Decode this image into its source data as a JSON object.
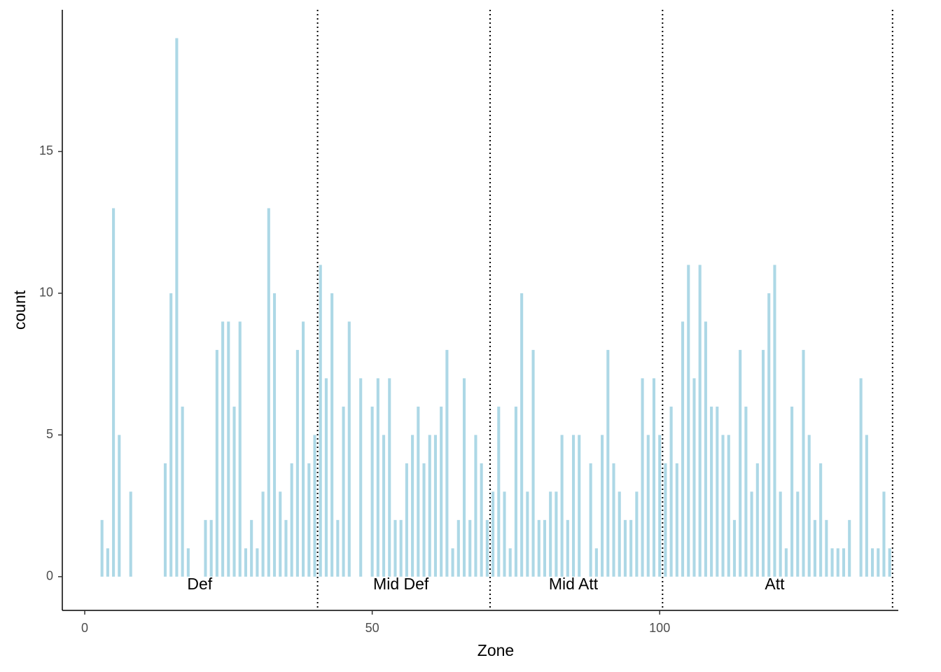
{
  "chart_data": {
    "type": "bar",
    "x_label": "Zone",
    "y_label": "count",
    "x": [
      3,
      4,
      5,
      6,
      8,
      14,
      15,
      16,
      17,
      18,
      21,
      22,
      23,
      24,
      25,
      26,
      27,
      28,
      29,
      30,
      31,
      32,
      33,
      34,
      35,
      36,
      37,
      38,
      39,
      40,
      41,
      42,
      43,
      44,
      45,
      46,
      48,
      50,
      51,
      52,
      53,
      54,
      55,
      56,
      57,
      58,
      59,
      60,
      61,
      62,
      63,
      64,
      65,
      66,
      67,
      68,
      69,
      70,
      71,
      72,
      73,
      74,
      75,
      76,
      77,
      78,
      79,
      80,
      81,
      82,
      83,
      84,
      85,
      86,
      88,
      89,
      90,
      91,
      92,
      93,
      94,
      95,
      96,
      97,
      98,
      99,
      100,
      101,
      102,
      103,
      104,
      105,
      106,
      107,
      108,
      109,
      110,
      111,
      112,
      113,
      114,
      115,
      116,
      117,
      118,
      119,
      120,
      121,
      122,
      123,
      124,
      125,
      126,
      127,
      128,
      129,
      130,
      131,
      132,
      133,
      135,
      136,
      137,
      138,
      139,
      140
    ],
    "values": [
      2,
      1,
      13,
      5,
      3,
      4,
      10,
      19,
      6,
      1,
      2,
      2,
      8,
      9,
      9,
      6,
      9,
      1,
      2,
      1,
      3,
      13,
      10,
      3,
      2,
      4,
      8,
      9,
      4,
      5,
      11,
      7,
      10,
      2,
      6,
      9,
      7,
      6,
      7,
      5,
      7,
      2,
      2,
      4,
      5,
      6,
      4,
      5,
      5,
      6,
      8,
      1,
      2,
      7,
      2,
      5,
      4,
      2,
      3,
      6,
      3,
      1,
      6,
      10,
      3,
      8,
      2,
      2,
      3,
      3,
      5,
      2,
      5,
      5,
      4,
      1,
      5,
      8,
      4,
      3,
      2,
      2,
      3,
      7,
      5,
      7,
      5,
      4,
      6,
      4,
      9,
      11,
      7,
      11,
      9,
      6,
      6,
      5,
      5,
      2,
      8,
      6,
      3,
      4,
      8,
      10,
      11,
      3,
      1,
      6,
      3,
      8,
      5,
      2,
      4,
      2,
      1,
      1,
      1,
      2,
      7,
      5,
      1,
      1,
      3,
      1
    ],
    "color": "#add8e6",
    "vlines": [
      40.5,
      70.5,
      100.5,
      140.5
    ],
    "annotations": [
      {
        "text": "Def",
        "x": 20,
        "y": -0.3
      },
      {
        "text": "Mid Def",
        "x": 55,
        "y": -0.3
      },
      {
        "text": "Mid Att",
        "x": 85,
        "y": -0.3
      },
      {
        "text": "Att",
        "x": 120,
        "y": -0.3
      }
    ],
    "xlim": [
      -3.9,
      141.5
    ],
    "ylim": [
      -1.19,
      20
    ],
    "xticks": [
      0,
      50,
      100
    ],
    "yticks": [
      0,
      5,
      10,
      15
    ],
    "grid": false
  }
}
